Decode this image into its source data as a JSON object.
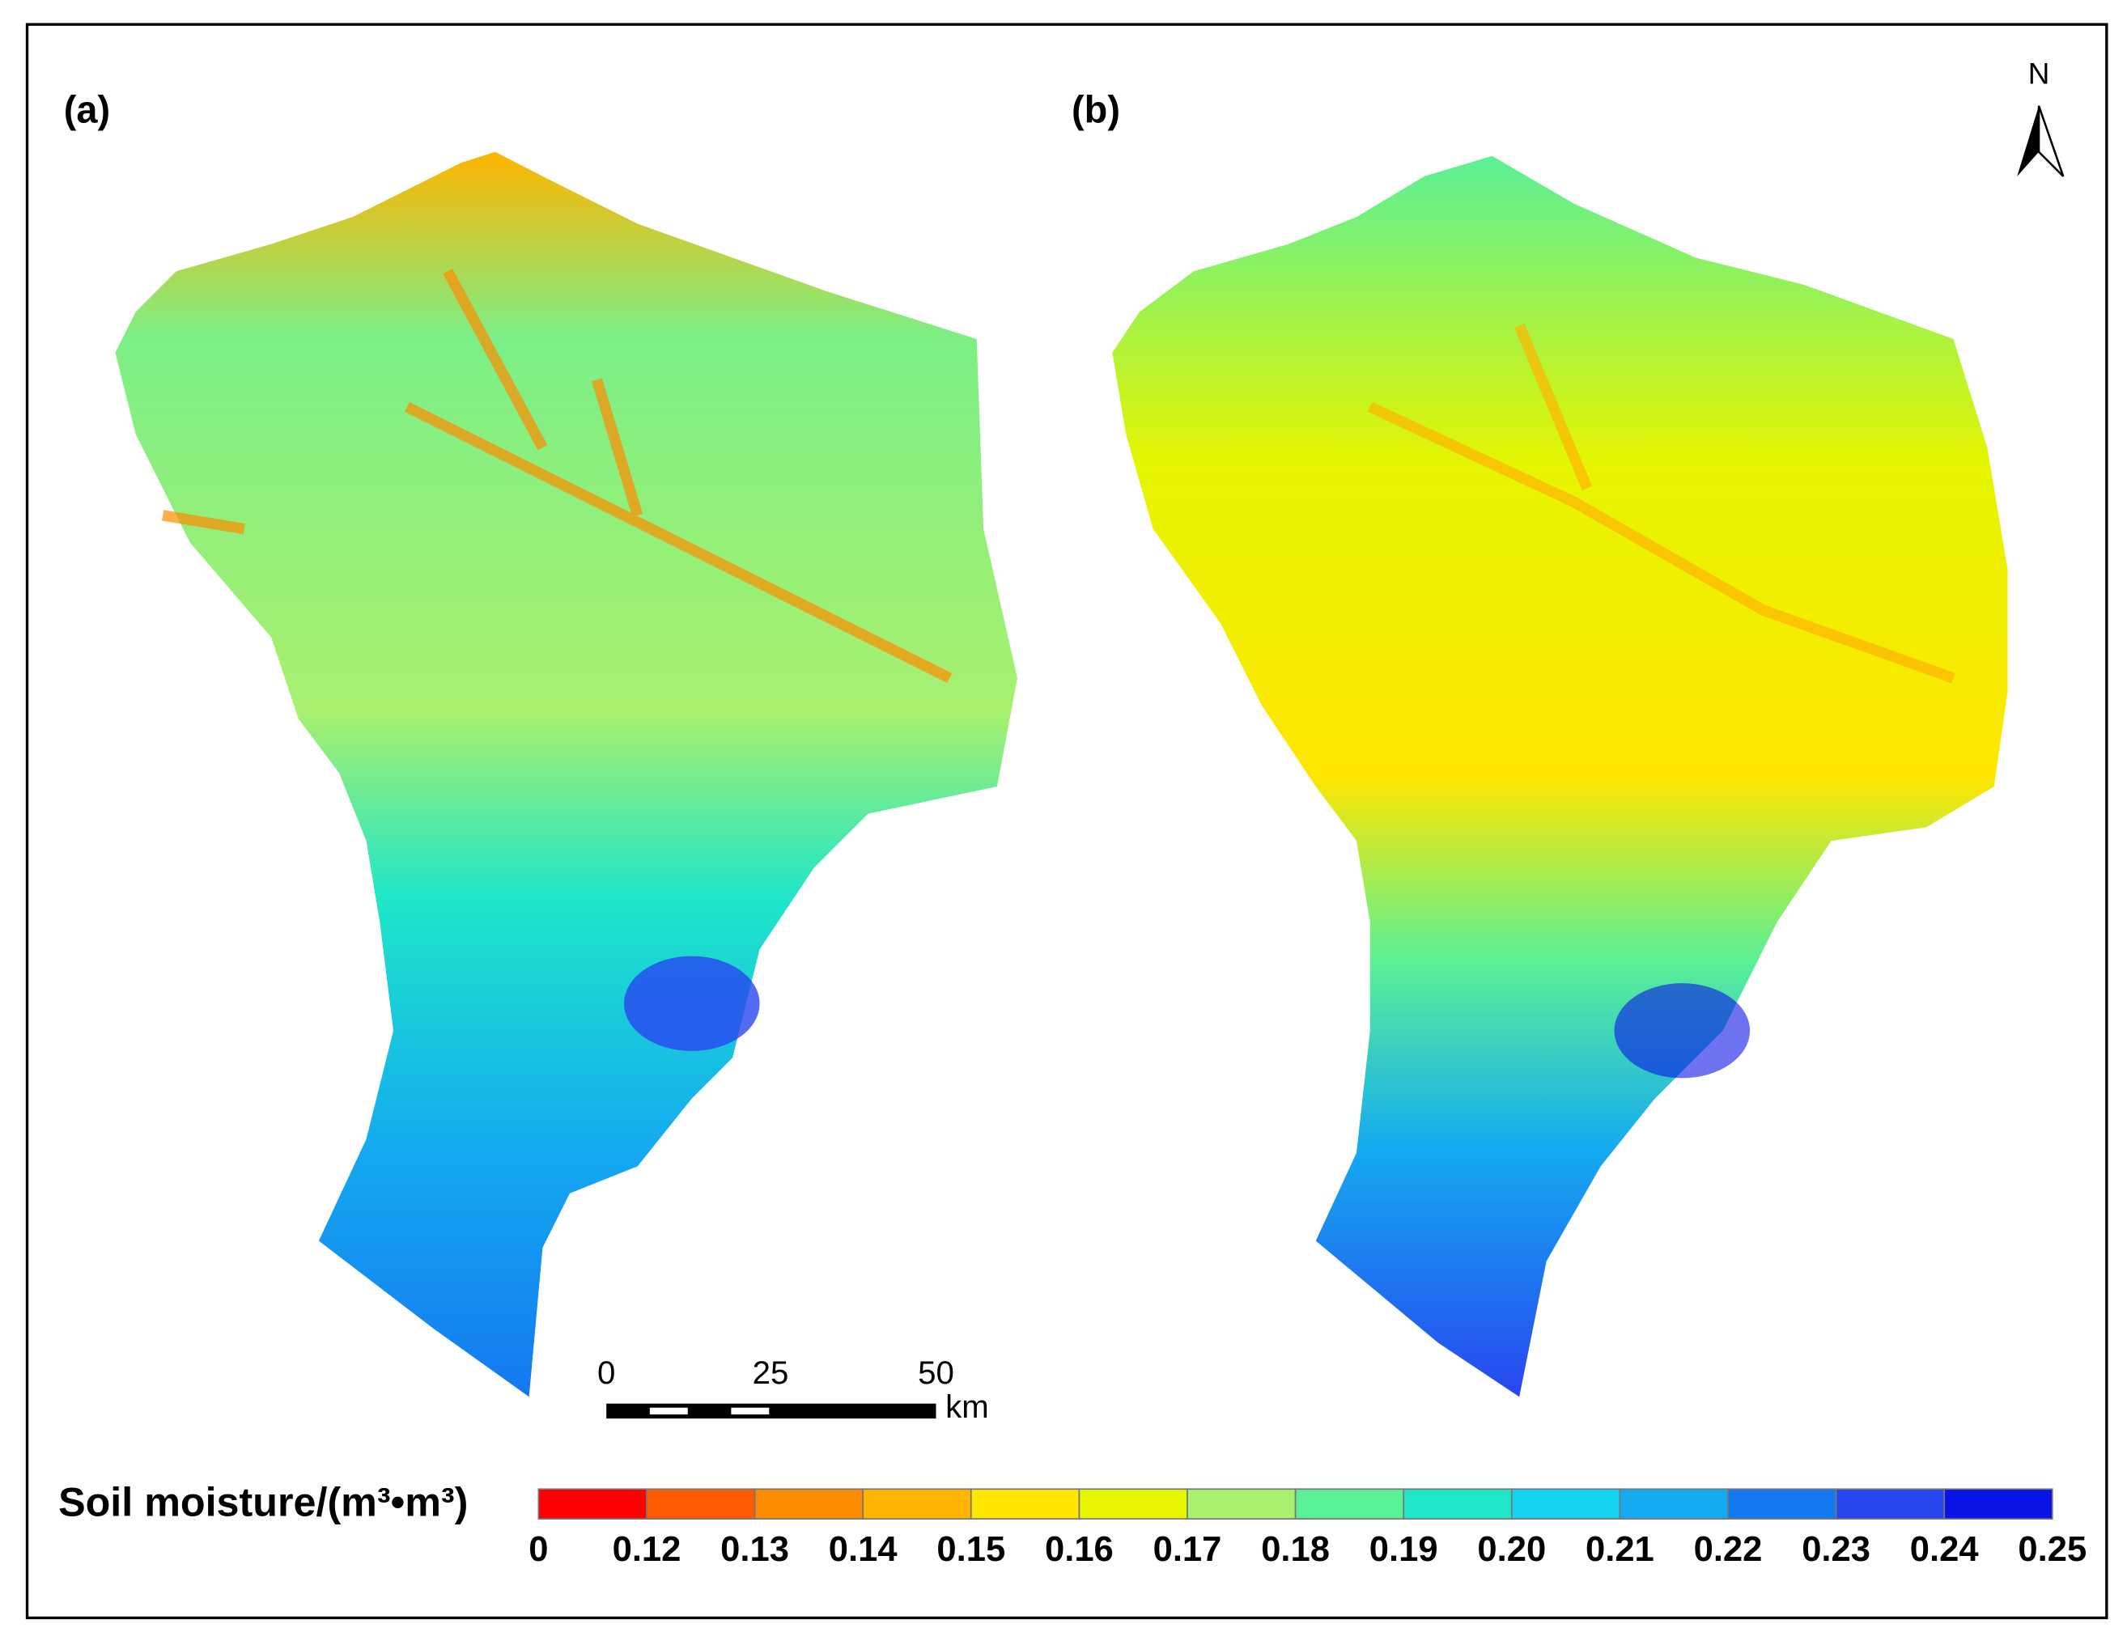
{
  "panels": [
    {
      "label": "(a)"
    },
    {
      "label": "(b)"
    }
  ],
  "north_arrow": {
    "label": "N"
  },
  "scale_bar": {
    "labels": [
      "0",
      "25",
      "50"
    ],
    "unit": "km"
  },
  "legend": {
    "title": "Soil moisture/(m³•m³)",
    "ticks": [
      "0",
      "0.12",
      "0.13",
      "0.14",
      "0.15",
      "0.16",
      "0.17",
      "0.18",
      "0.19",
      "0.20",
      "0.21",
      "0.22",
      "0.23",
      "0.24",
      "0.25"
    ],
    "colors": [
      "#ff0000",
      "#ff5a00",
      "#ff8c00",
      "#ffb400",
      "#ffe600",
      "#e6f500",
      "#a8f06e",
      "#5af096",
      "#1ee6c8",
      "#14d2f0",
      "#14aaf0",
      "#1478f0",
      "#2846f0",
      "#0a14e6"
    ]
  }
}
